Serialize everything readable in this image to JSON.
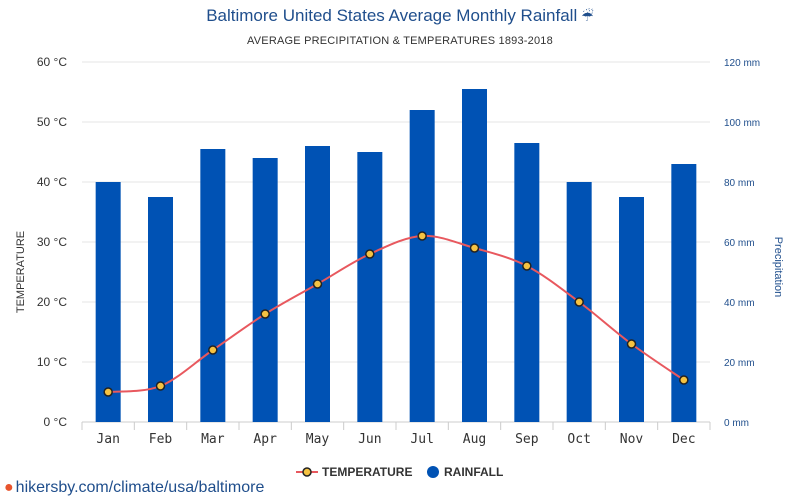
{
  "title": "Baltimore United States Average Monthly Rainfall",
  "title_icon": "umbrella-icon",
  "subtitle": "AVERAGE PRECIPITATION & TEMPERATURES 1893-2018",
  "footer": "hikersby.com/climate/usa/baltimore",
  "colors": {
    "rainfall": "#0052b4",
    "temperature_line": "#e8585e",
    "marker_fill": "#f5c242",
    "title": "#1f4e8c"
  },
  "chart_data": {
    "type": "bar",
    "categories": [
      "Jan",
      "Feb",
      "Mar",
      "Apr",
      "May",
      "Jun",
      "Jul",
      "Aug",
      "Sep",
      "Oct",
      "Nov",
      "Dec"
    ],
    "series": [
      {
        "name": "RAINFALL",
        "type": "bar",
        "axis": "right",
        "unit": "mm",
        "values": [
          80,
          75,
          91,
          88,
          92,
          90,
          104,
          111,
          93,
          80,
          75,
          86
        ]
      },
      {
        "name": "TEMPERATURE",
        "type": "line",
        "axis": "left",
        "unit": "°C",
        "values": [
          5,
          6,
          12,
          18,
          23,
          28,
          31,
          29,
          26,
          20,
          13,
          7
        ]
      }
    ],
    "ylabel_left": "TEMPERATURE",
    "ylabel_right": "Precipitation",
    "ylim_left": [
      0,
      60
    ],
    "ylim_right": [
      0,
      120
    ],
    "yticks_left": [
      "0 °C",
      "10 °C",
      "20 °C",
      "30 °C",
      "40 °C",
      "50 °C",
      "60 °C"
    ],
    "yticks_right": [
      "0 mm",
      "20 mm",
      "40 mm",
      "60 mm",
      "80 mm",
      "100 mm",
      "120 mm"
    ],
    "legend_position": "bottom",
    "grid": true
  }
}
